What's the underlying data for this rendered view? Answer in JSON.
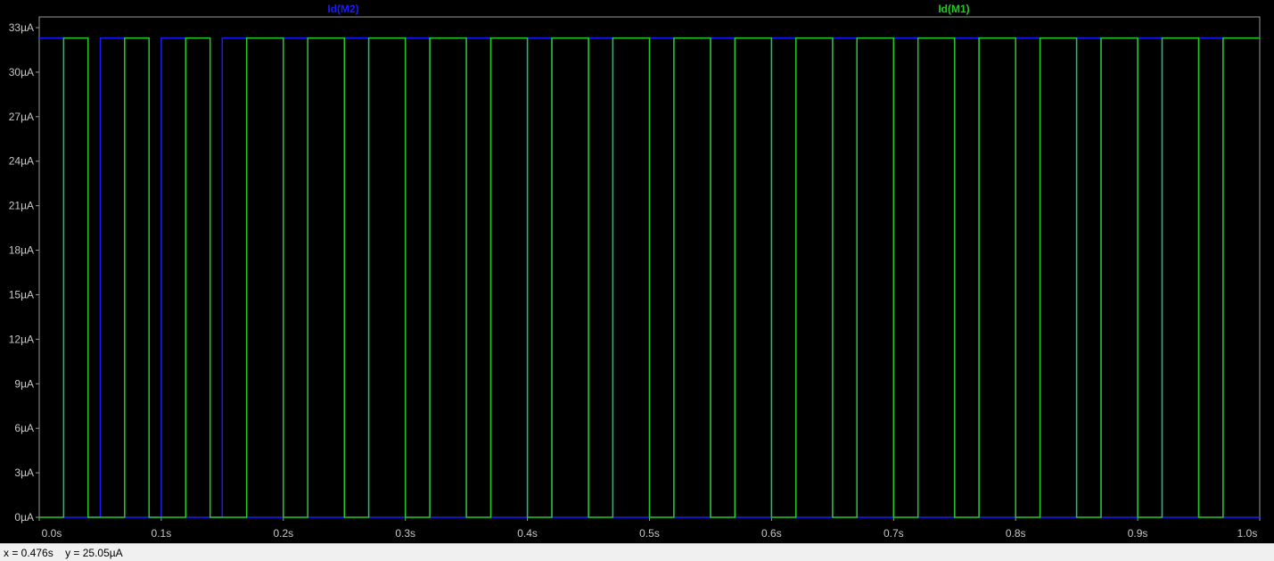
{
  "chart_data": {
    "type": "line",
    "title": "",
    "xlabel": "",
    "ylabel": "",
    "xlim": [
      0.0,
      1.0
    ],
    "ylim": [
      0,
      33
    ],
    "x_ticks": [
      "0.0s",
      "0.1s",
      "0.2s",
      "0.3s",
      "0.4s",
      "0.5s",
      "0.6s",
      "0.7s",
      "0.8s",
      "0.9s",
      "1.0s"
    ],
    "y_ticks": [
      "0µA",
      "3µA",
      "6µA",
      "9µA",
      "12µA",
      "15µA",
      "18µA",
      "21µA",
      "24µA",
      "27µA",
      "30µA",
      "33µA"
    ],
    "grid": false,
    "background": "#000000",
    "series": [
      {
        "name": "Id(M2)",
        "color": "#1a1aff",
        "x": [
          0.0,
          0.02,
          0.02,
          0.05,
          0.05,
          0.07,
          0.07,
          0.1,
          0.1,
          0.12,
          0.12,
          0.15,
          0.15,
          0.17,
          0.17,
          0.2,
          0.2,
          0.22,
          0.22,
          0.25,
          0.25,
          0.27,
          0.27,
          0.3,
          0.3,
          0.32,
          0.32,
          0.35,
          0.35,
          0.37,
          0.37,
          0.4,
          0.4,
          0.42,
          0.42,
          0.45,
          0.45,
          0.47,
          0.47,
          0.5,
          0.5,
          0.52,
          0.52,
          0.55,
          0.55,
          0.57,
          0.57,
          0.6,
          0.6,
          0.62,
          0.62,
          0.65,
          0.65,
          0.67,
          0.67,
          0.7,
          0.7,
          0.72,
          0.72,
          0.75,
          0.75,
          0.77,
          0.77,
          0.8,
          0.8,
          0.82,
          0.82,
          0.85,
          0.85,
          0.87,
          0.87,
          0.9,
          0.9,
          0.92,
          0.92,
          0.95,
          0.95,
          0.97,
          0.97,
          1.0
        ],
        "values": [
          32.3,
          32.3,
          0,
          0,
          32.3,
          32.3,
          0,
          0,
          32.3,
          32.3,
          0,
          0,
          32.3,
          32.3,
          0,
          0,
          32.3,
          32.3,
          0,
          0,
          32.3,
          32.3,
          0,
          0,
          32.3,
          32.3,
          0,
          0,
          32.3,
          32.3,
          0,
          0,
          32.3,
          32.3,
          0,
          0,
          32.3,
          32.3,
          0,
          0,
          32.3,
          32.3,
          0,
          0,
          32.3,
          32.3,
          0,
          0,
          32.3,
          32.3,
          0,
          0,
          32.3,
          32.3,
          0,
          0,
          32.3,
          32.3,
          0,
          0,
          32.3,
          32.3,
          0,
          0,
          32.3,
          32.3,
          0,
          0,
          32.3,
          32.3,
          0,
          0,
          32.3,
          32.3,
          0,
          0,
          32.3,
          32.3,
          0,
          0
        ]
      },
      {
        "name": "Id(M1)",
        "color": "#22cc22",
        "x": [
          0.0,
          0.02,
          0.02,
          0.04,
          0.04,
          0.07,
          0.07,
          0.09,
          0.09,
          0.12,
          0.12,
          0.14,
          0.14,
          0.17,
          0.17,
          0.2,
          0.2,
          0.22,
          0.22,
          0.25,
          0.25,
          0.27,
          0.27,
          0.3,
          0.3,
          0.32,
          0.32,
          0.35,
          0.35,
          0.37,
          0.37,
          0.4,
          0.4,
          0.42,
          0.42,
          0.45,
          0.45,
          0.47,
          0.47,
          0.5,
          0.5,
          0.52,
          0.52,
          0.55,
          0.55,
          0.57,
          0.57,
          0.6,
          0.6,
          0.62,
          0.62,
          0.65,
          0.65,
          0.67,
          0.67,
          0.7,
          0.7,
          0.72,
          0.72,
          0.75,
          0.75,
          0.77,
          0.77,
          0.8,
          0.8,
          0.82,
          0.82,
          0.85,
          0.85,
          0.87,
          0.87,
          0.9,
          0.9,
          0.92,
          0.92,
          0.95,
          0.95,
          0.97,
          0.97,
          1.0
        ],
        "values": [
          0,
          0,
          32.3,
          32.3,
          0,
          0,
          32.3,
          32.3,
          0,
          0,
          32.3,
          32.3,
          0,
          0,
          32.3,
          32.3,
          0,
          0,
          32.3,
          32.3,
          0,
          0,
          32.3,
          32.3,
          0,
          0,
          32.3,
          32.3,
          0,
          0,
          32.3,
          32.3,
          0,
          0,
          32.3,
          32.3,
          0,
          0,
          32.3,
          32.3,
          0,
          0,
          32.3,
          32.3,
          0,
          0,
          32.3,
          32.3,
          0,
          0,
          32.3,
          32.3,
          0,
          0,
          32.3,
          32.3,
          0,
          0,
          32.3,
          32.3,
          0,
          0,
          32.3,
          32.3,
          0,
          0,
          32.3,
          32.3,
          0,
          0,
          32.3,
          32.3,
          0,
          0,
          32.3,
          32.3,
          0,
          0,
          32.3,
          32.3
        ]
      }
    ]
  },
  "cursor": {
    "x_readout": "x = 0.476s",
    "y_readout": "y = 25.05µA"
  }
}
